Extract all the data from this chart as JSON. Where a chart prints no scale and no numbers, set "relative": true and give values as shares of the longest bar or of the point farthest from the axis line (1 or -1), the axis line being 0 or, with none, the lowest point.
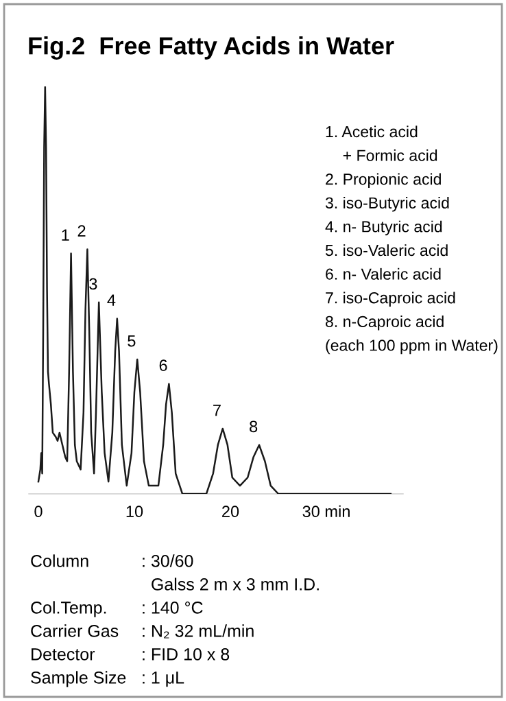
{
  "chart_data": {
    "type": "line",
    "title": "Fig.2  Free Fatty Acids in Water",
    "relative": true,
    "x": [
      0,
      0.2,
      0.3,
      0.4,
      0.5,
      0.6,
      0.7,
      0.8,
      0.9,
      1.0,
      1.1,
      1.3,
      1.5,
      1.8,
      2.0,
      2.2,
      2.4,
      2.6,
      2.8,
      3.0,
      3.2,
      3.4,
      3.6,
      3.8,
      4.0,
      4.4,
      4.7,
      4.9,
      5.1,
      5.3,
      5.5,
      5.8,
      6.0,
      6.3,
      6.6,
      6.9,
      7.3,
      7.7,
      8.0,
      8.2,
      8.4,
      8.7,
      9.2,
      9.7,
      10.0,
      10.3,
      10.6,
      11.0,
      11.5,
      12.5,
      13.0,
      13.3,
      13.6,
      13.9,
      14.3,
      15.0,
      15.5,
      17.5,
      18.2,
      18.7,
      19.2,
      19.7,
      20.2,
      21.0,
      21.8,
      22.4,
      23.0,
      23.6,
      24.2,
      25.0,
      30,
      36.7
    ],
    "series": [
      {
        "color": "#1a1a1a",
        "values": [
          0.03,
          0.06,
          0.1,
          0.05,
          0.4,
          0.85,
          1.0,
          0.85,
          0.5,
          0.3,
          0.27,
          0.22,
          0.15,
          0.14,
          0.13,
          0.15,
          0.13,
          0.11,
          0.09,
          0.08,
          0.3,
          0.59,
          0.3,
          0.12,
          0.08,
          0.06,
          0.2,
          0.45,
          0.6,
          0.4,
          0.15,
          0.05,
          0.2,
          0.47,
          0.25,
          0.1,
          0.03,
          0.15,
          0.35,
          0.43,
          0.35,
          0.12,
          0.02,
          0.1,
          0.25,
          0.33,
          0.25,
          0.08,
          0.02,
          0.02,
          0.12,
          0.22,
          0.27,
          0.2,
          0.05,
          0.0,
          0.0,
          0.0,
          0.05,
          0.12,
          0.16,
          0.12,
          0.04,
          0.02,
          0.04,
          0.09,
          0.12,
          0.08,
          0.02,
          0.0,
          0.0,
          0.0
        ]
      }
    ],
    "xlim": [
      -1,
      38
    ],
    "xticks": [
      0,
      10,
      20,
      {
        "value": 30,
        "label": "30 min"
      }
    ],
    "line_style": "solid",
    "marker": "none",
    "grid": false,
    "legend": false,
    "tick_labels": "x",
    "annotations": [
      {
        "text": "1",
        "x": 3.4,
        "y": 0.59
      },
      {
        "text": "2",
        "x": 5.1,
        "y": 0.6
      },
      {
        "text": "3",
        "x": 6.3,
        "y": 0.47
      },
      {
        "text": "4",
        "x": 8.2,
        "y": 0.43
      },
      {
        "text": "5",
        "x": 10.3,
        "y": 0.33
      },
      {
        "text": "6",
        "x": 13.6,
        "y": 0.27
      },
      {
        "text": "7",
        "x": 19.2,
        "y": 0.16
      },
      {
        "text": "8",
        "x": 23.0,
        "y": 0.12
      },
      "1. Acetic acid",
      "    + Formic acid",
      "2. Propionic acid",
      "3. iso-Butyric acid",
      "4. n- Butyric acid",
      "5. iso-Valeric acid",
      "6. n- Valeric acid",
      "7. iso-Caproic acid",
      "8. n-Caproic acid",
      "(each 100 ppm in Water)",
      "Column\t: 30/60",
      "\tGalss 2 m x 3 mm I.D.",
      "Col.Temp.\t: 140 °C",
      "Carrier Gas\t: N₂ 32 mL/min",
      "Detector\t: FID 10 x 8",
      "Sample Size\t: 1 μL"
    ]
  }
}
